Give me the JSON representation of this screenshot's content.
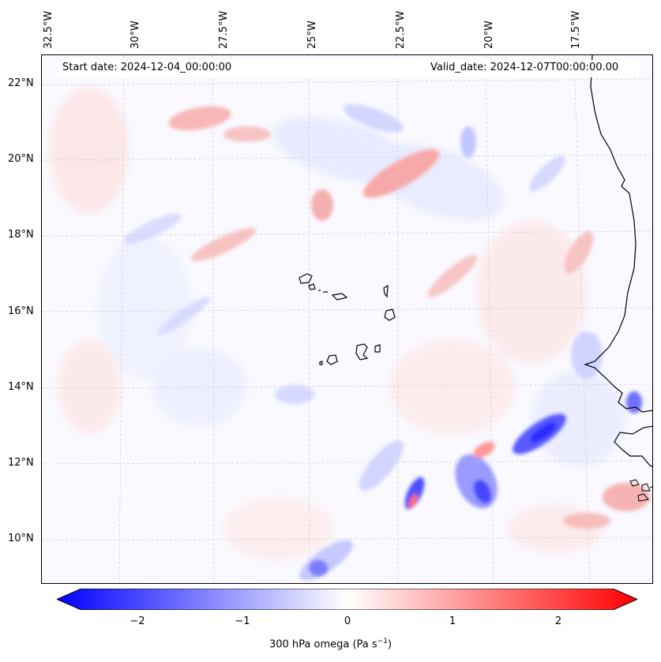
{
  "header": {
    "start_date": "Start date: 2024-12-04_00:00:00",
    "valid_date": "Valid_date: 2024-12-07T00:00:00.00"
  },
  "axes": {
    "longitude_labels": [
      "32.5°W",
      "30°W",
      "27.5°W",
      "25°W",
      "22.5°W",
      "20°W",
      "17.5°W"
    ],
    "latitude_labels": [
      "22°N",
      "20°N",
      "18°N",
      "16°N",
      "14°N",
      "12°N",
      "10°N"
    ]
  },
  "colorbar": {
    "ticks": [
      "−2",
      "−1",
      "0",
      "1",
      "2"
    ],
    "label": "300 hPa omega (Pa s",
    "label_sup": "−1",
    "label_end": ")",
    "negative_color": "#0000ff",
    "neutral_color": "#ffffff",
    "positive_color": "#ff0000"
  }
}
